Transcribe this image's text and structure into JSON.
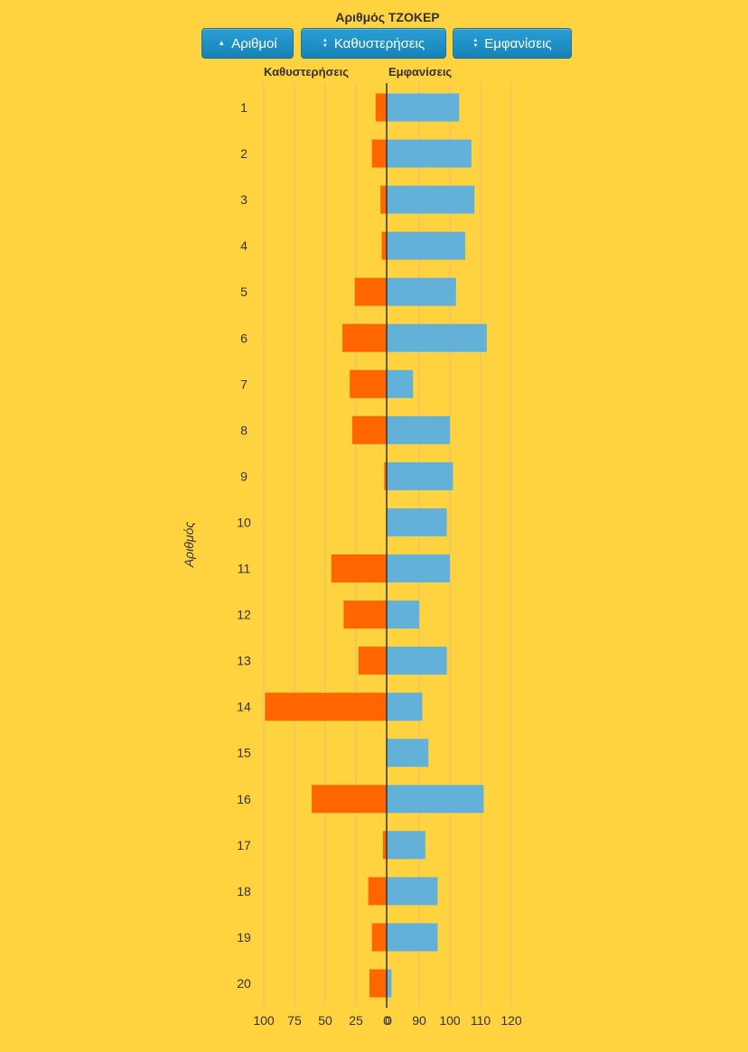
{
  "title": "Αριθμός ΤΖΟΚΕΡ",
  "buttons": {
    "sort_numbers": "Αριθμοί",
    "sort_delays": "Καθυστερήσεις",
    "sort_appearances": "Εμφανίσεις"
  },
  "icons": {
    "sort_numbers": "sort-up-icon",
    "sort_delays": "sort-icon",
    "sort_appearances": "sort-icon"
  },
  "colors": {
    "background": "#ffd23f",
    "delays": "#ff6600",
    "appearances": "#63b0d8",
    "button": "#1a8cc6"
  },
  "chart_data": {
    "type": "bar",
    "orientation": "horizontal-diverging",
    "title": "Αριθμός ΤΖΟΚΕΡ",
    "ylabel": "Αριθμός",
    "categories": [
      "1",
      "2",
      "3",
      "4",
      "5",
      "6",
      "7",
      "8",
      "9",
      "10",
      "11",
      "12",
      "13",
      "14",
      "15",
      "16",
      "17",
      "18",
      "19",
      "20"
    ],
    "series": [
      {
        "name": "Καθυστερήσεις",
        "side": "left",
        "values": [
          9,
          12,
          5,
          4,
          26,
          36,
          30,
          28,
          2,
          0,
          45,
          35,
          23,
          99,
          0,
          61,
          3,
          15,
          12,
          14
        ],
        "xlim": [
          0,
          100
        ],
        "ticks": [
          "100",
          "75",
          "50",
          "25",
          "0"
        ]
      },
      {
        "name": "Εμφανίσεις",
        "side": "right",
        "values": [
          103,
          107,
          108,
          105,
          102,
          112,
          88,
          100,
          101,
          99,
          100,
          90,
          99,
          91,
          93,
          111,
          92,
          96,
          96,
          81
        ],
        "xlim": [
          80,
          120
        ],
        "ticks": [
          "0",
          "90",
          "100",
          "110",
          "120"
        ]
      }
    ],
    "grid": true
  }
}
